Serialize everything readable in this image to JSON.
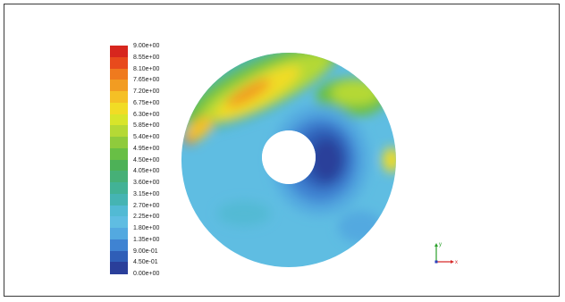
{
  "colorbar": {
    "labels": [
      "9.00e+00",
      "8.55e+00",
      "8.10e+00",
      "7.65e+00",
      "7.20e+00",
      "6.75e+00",
      "6.30e+00",
      "5.85e+00",
      "5.40e+00",
      "4.95e+00",
      "4.50e+00",
      "4.05e+00",
      "3.60e+00",
      "3.15e+00",
      "2.70e+00",
      "2.25e+00",
      "1.80e+00",
      "1.35e+00",
      "9.00e-01",
      "4.50e-01",
      "0.00e+00"
    ],
    "colors": [
      "#d7261e",
      "#e84a1c",
      "#ef7a1e",
      "#f29c22",
      "#f5c025",
      "#f1dc25",
      "#d8e52a",
      "#b5d935",
      "#8fcb3c",
      "#68bf45",
      "#4db157",
      "#46b077",
      "#42b296",
      "#45b4b3",
      "#52bad4",
      "#5fbde2",
      "#53a9e0",
      "#3f83d2",
      "#2f5eb7",
      "#2a3f9a"
    ],
    "min": 0,
    "max": 9
  },
  "axes": {
    "x": "x",
    "y": "y"
  }
}
